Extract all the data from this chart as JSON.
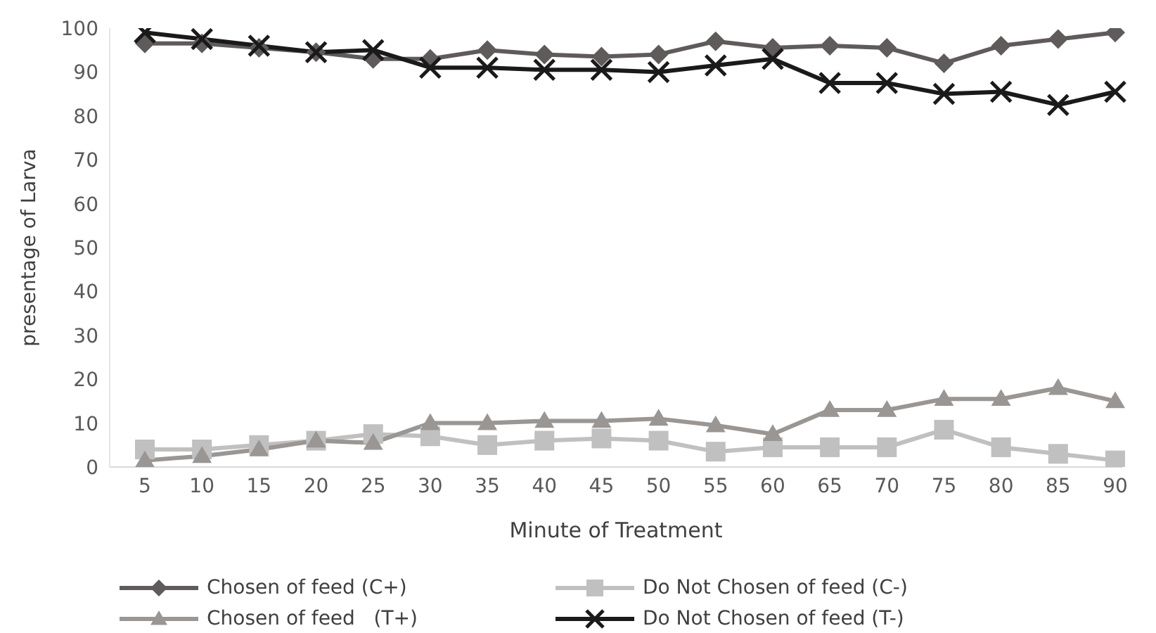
{
  "chart_data": {
    "type": "line",
    "xlabel": "Minute of Treatment",
    "ylabel": "presentage of Larva",
    "categories": [
      "5",
      "10",
      "15",
      "20",
      "25",
      "30",
      "35",
      "40",
      "45",
      "50",
      "55",
      "60",
      "65",
      "70",
      "75",
      "80",
      "85",
      "90"
    ],
    "ylim": [
      0,
      100
    ],
    "yticks": [
      0,
      10,
      20,
      30,
      40,
      50,
      60,
      70,
      80,
      90,
      100
    ],
    "grid": false,
    "legend": "bottom",
    "line_style": "solid",
    "series": [
      {
        "name": "Chosen of feed (C+)",
        "color": "#5f5b5b",
        "marker": "diamond",
        "values": [
          96.5,
          96.5,
          95.5,
          94.5,
          93,
          93,
          95,
          94,
          93.5,
          94,
          97,
          95.5,
          96,
          95.5,
          92,
          96,
          97.5,
          99
        ]
      },
      {
        "name": "Do Not Chosen of feed (C-)",
        "color": "#c0c0c0",
        "marker": "square",
        "values": [
          4,
          4,
          5,
          6,
          7.5,
          7,
          5,
          6,
          6.5,
          6,
          3.5,
          4.5,
          4.5,
          4.5,
          8.5,
          4.5,
          3,
          1.5
        ]
      },
      {
        "name": "Chosen of feed   (T+)",
        "color": "#999694",
        "marker": "triangle",
        "values": [
          1.5,
          2.5,
          4,
          6,
          5.5,
          10,
          10,
          10.5,
          10.5,
          11,
          9.5,
          7.5,
          13,
          13,
          15.5,
          15.5,
          18,
          15
        ]
      },
      {
        "name": "Do Not Chosen of feed (T-)",
        "color": "#1a1a1a",
        "marker": "cross",
        "values": [
          99,
          97.5,
          96,
          94.5,
          95,
          91,
          91,
          90.5,
          90.5,
          90,
          91.5,
          93,
          87.5,
          87.5,
          85,
          85.5,
          82.5,
          85.5
        ]
      }
    ]
  }
}
